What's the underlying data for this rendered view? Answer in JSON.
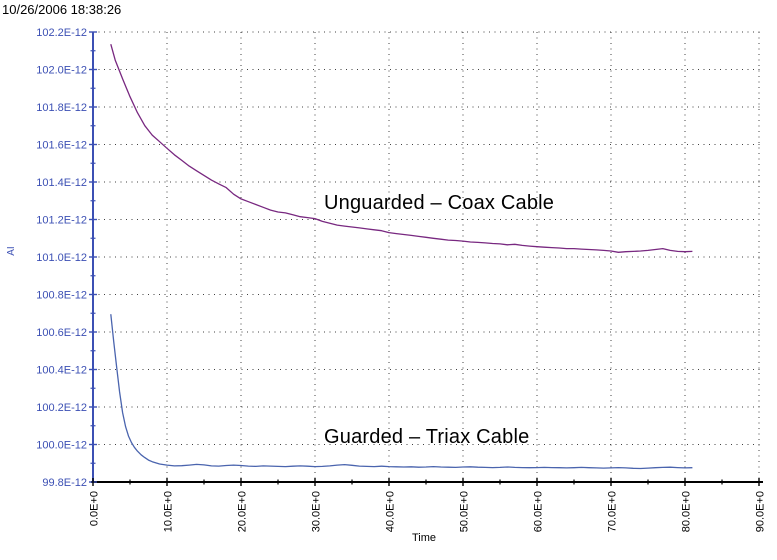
{
  "header": {
    "timestamp": "10/26/2006 18:38:26"
  },
  "chart_data": {
    "type": "line",
    "title": "",
    "xlabel": "Time",
    "ylabel": "AI",
    "y_unit": "E-12",
    "xlim": [
      0,
      90
    ],
    "ylim": [
      99.8,
      102.2
    ],
    "x_major_tick_step": 10,
    "x_minor_tick_step": 5,
    "y_major_tick_step": 0.2,
    "y_minor_tick_step": 0.1,
    "grid": "dotted, at major ticks",
    "x_tick_labels": [
      "0.0E+0",
      "10.0E+0",
      "20.0E+0",
      "30.0E+0",
      "40.0E+0",
      "50.0E+0",
      "60.0E+0",
      "70.0E+0",
      "80.0E+0",
      "90.0E+0"
    ],
    "y_tick_labels": [
      "102.2E-12",
      "102.0E-12",
      "101.8E-12",
      "101.6E-12",
      "101.4E-12",
      "101.2E-12",
      "101.0E-12",
      "100.8E-12",
      "100.6E-12",
      "100.4E-12",
      "100.2E-12",
      "100.0E-12",
      "99.8E-12"
    ],
    "series": [
      {
        "name": "Unguarded – Coax Cable",
        "color": "#782880",
        "x": [
          2.4,
          3,
          4,
          5,
          6,
          7,
          8,
          9,
          10,
          11,
          12,
          13,
          14,
          15,
          16,
          17,
          18,
          19,
          20,
          21,
          22,
          23,
          24,
          25,
          26,
          27,
          28,
          29,
          30,
          31,
          32,
          33,
          34,
          35,
          36,
          37,
          38,
          39,
          40,
          41,
          42,
          43,
          44,
          45,
          46,
          47,
          48,
          49,
          50,
          51,
          52,
          53,
          54,
          55,
          56,
          57,
          58,
          59,
          60,
          61,
          62,
          63,
          64,
          65,
          66,
          67,
          68,
          69,
          70,
          71,
          72,
          73,
          74,
          75,
          76,
          77,
          78,
          79,
          80,
          81
        ],
        "y": [
          102.135,
          102.05,
          101.95,
          101.855,
          101.77,
          101.7,
          101.65,
          101.615,
          101.58,
          101.545,
          101.515,
          101.485,
          101.46,
          101.435,
          101.41,
          101.39,
          101.37,
          101.335,
          101.31,
          101.295,
          101.28,
          101.265,
          101.25,
          101.24,
          101.235,
          101.225,
          101.215,
          101.21,
          101.205,
          101.19,
          101.18,
          101.17,
          101.165,
          101.16,
          101.155,
          101.15,
          101.145,
          101.14,
          101.13,
          101.125,
          101.12,
          101.115,
          101.11,
          101.105,
          101.1,
          101.095,
          101.09,
          101.088,
          101.085,
          101.08,
          101.078,
          101.075,
          101.072,
          101.07,
          101.065,
          101.068,
          101.062,
          101.058,
          101.055,
          101.052,
          101.05,
          101.048,
          101.045,
          101.045,
          101.042,
          101.04,
          101.038,
          101.035,
          101.032,
          101.025,
          101.028,
          101.03,
          101.032,
          101.035,
          101.04,
          101.045,
          101.035,
          101.03,
          101.028,
          101.03
        ]
      },
      {
        "name": "Guarded – Triax Cable",
        "color": "#4A64AE",
        "x": [
          2.4,
          2.8,
          3.2,
          3.6,
          4,
          4.4,
          4.8,
          5.2,
          5.6,
          6,
          6.5,
          7,
          7.5,
          8,
          9,
          10,
          11,
          12,
          13,
          14,
          15,
          16,
          17,
          18,
          19,
          20,
          21,
          22,
          23,
          24,
          25,
          26,
          27,
          28,
          29,
          30,
          31,
          32,
          33,
          34,
          35,
          36,
          37,
          38,
          39,
          40,
          41,
          42,
          43,
          44,
          45,
          46,
          47,
          48,
          49,
          50,
          51,
          52,
          53,
          54,
          55,
          56,
          57,
          58,
          59,
          60,
          61,
          62,
          63,
          64,
          65,
          66,
          67,
          68,
          69,
          70,
          71,
          72,
          73,
          74,
          75,
          76,
          77,
          78,
          79,
          80,
          81
        ],
        "y": [
          100.695,
          100.55,
          100.41,
          100.28,
          100.17,
          100.095,
          100.045,
          100.01,
          99.985,
          99.965,
          99.945,
          99.93,
          99.917,
          99.908,
          99.896,
          99.89,
          99.886,
          99.887,
          99.89,
          99.894,
          99.891,
          99.886,
          99.885,
          99.888,
          99.89,
          99.888,
          99.885,
          99.883,
          99.886,
          99.885,
          99.883,
          99.882,
          99.884,
          99.886,
          99.884,
          99.882,
          99.883,
          99.886,
          99.89,
          99.893,
          99.889,
          99.885,
          99.883,
          99.882,
          99.884,
          99.882,
          99.881,
          99.88,
          99.881,
          99.879,
          99.88,
          99.882,
          99.88,
          99.879,
          99.878,
          99.88,
          99.881,
          99.879,
          99.878,
          99.877,
          99.878,
          99.88,
          99.878,
          99.877,
          99.876,
          99.877,
          99.878,
          99.877,
          99.876,
          99.875,
          99.876,
          99.878,
          99.876,
          99.875,
          99.874,
          99.875,
          99.877,
          99.875,
          99.873,
          99.872,
          99.874,
          99.876,
          99.878,
          99.879,
          99.877,
          99.875,
          99.876
        ]
      }
    ]
  },
  "colors": {
    "background": "#FFFFFF",
    "y_axis": "#3C50B4",
    "x_axis": "#000000",
    "grid_dots": "#404040",
    "annotation_text": "#000000",
    "unguarded_line": "#782880",
    "guarded_line": "#4A64AE"
  }
}
